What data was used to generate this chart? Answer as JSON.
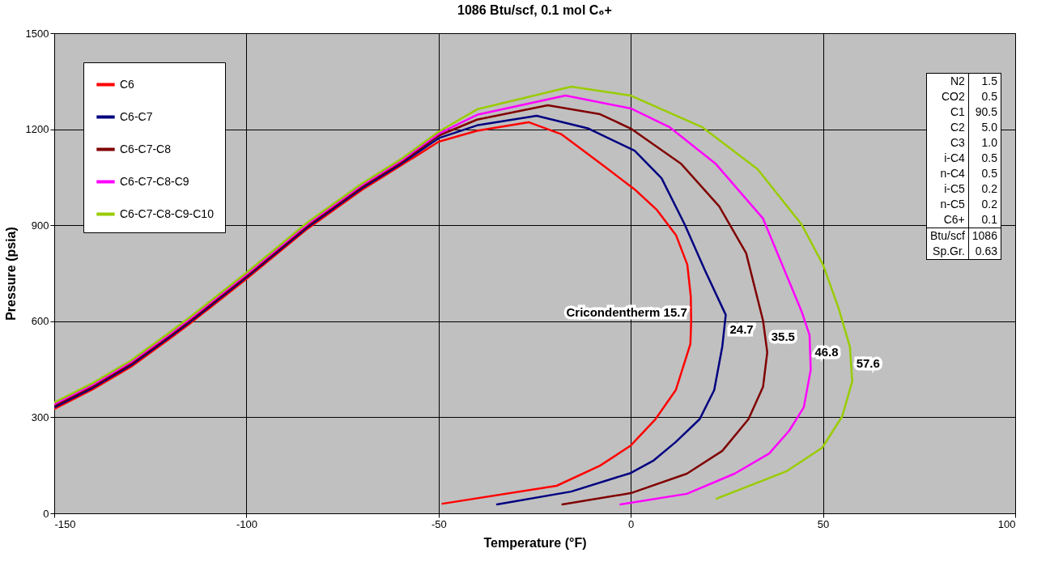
{
  "chart_data": {
    "type": "line",
    "title": "1086 Btu/scf, 0.1  mol C₆+",
    "xlabel": "Temperature (°F)",
    "ylabel": "Pressure (psia)",
    "xlim": [
      -150,
      100
    ],
    "xticks": [
      -150,
      -100,
      -50,
      0,
      50,
      100
    ],
    "ylim": [
      0,
      1500
    ],
    "yticks": [
      0,
      300,
      600,
      900,
      1200,
      1500
    ],
    "grid": true,
    "legend": "top left",
    "marker": "none",
    "line_style": "solid",
    "series": [
      {
        "name": "C6",
        "color": "#ff0000",
        "x": [
          -150,
          -140,
          -130,
          -120,
          -115,
          -100,
          -84,
          -70,
          -60,
          -50,
          -40,
          -26.6,
          -18,
          -7,
          1,
          6.7,
          11.8,
          14.7,
          15.6,
          15.7,
          15.5,
          11.7,
          6.4,
          0,
          -8,
          -19.3,
          -49
        ],
        "values": [
          326,
          387,
          458,
          545,
          590,
          732,
          890,
          1010,
          1085,
          1161,
          1195,
          1222,
          1184,
          1085,
          1012,
          949,
          868,
          777,
          678,
          600,
          529,
          385,
          294,
          212,
          149,
          86,
          30
        ]
      },
      {
        "name": "C6-C7",
        "color": "#000080",
        "x": [
          -150,
          -140,
          -130,
          -120,
          -115,
          -100,
          -84,
          -70,
          -60,
          -50,
          -40,
          -24.5,
          -11,
          1,
          8,
          14,
          19.3,
          24.7,
          23.8,
          21.7,
          17.9,
          11.7,
          5.8,
          0,
          -15.5,
          -34.8
        ],
        "values": [
          331,
          392,
          463,
          550,
          595,
          737,
          895,
          1015,
          1090,
          1172,
          1212,
          1242,
          1202,
          1133,
          1047,
          903,
          759,
          620,
          521,
          385,
          294,
          223,
          164,
          126,
          68,
          28
        ]
      },
      {
        "name": "C6-C7-C8",
        "color": "#800000",
        "x": [
          -150,
          -140,
          -130,
          -120,
          -115,
          -100,
          -84,
          -70,
          -60,
          -50,
          -40,
          -21.6,
          -8,
          0,
          13,
          23,
          30,
          34.4,
          35.5,
          34.4,
          30.6,
          23.8,
          14.6,
          0,
          -17.8
        ],
        "values": [
          336,
          397,
          468,
          555,
          600,
          742,
          900,
          1020,
          1095,
          1180,
          1230,
          1275,
          1247,
          1202,
          1093,
          959,
          813,
          602,
          503,
          395,
          294,
          195,
          124,
          63,
          28
        ]
      },
      {
        "name": "C6-C7-C8-C9",
        "color": "#ff00ff",
        "x": [
          -150,
          -140,
          -130,
          -120,
          -115,
          -100,
          -84,
          -70,
          -60,
          -50,
          -40,
          -17,
          0,
          10,
          22,
          34.4,
          44.4,
          46.5,
          46.8,
          45,
          41.2,
          36,
          27,
          14.6,
          -2.7
        ],
        "values": [
          341,
          402,
          473,
          560,
          605,
          747,
          905,
          1025,
          1100,
          1186,
          1245,
          1305,
          1265,
          1207,
          1093,
          921,
          632,
          557,
          448,
          331,
          258,
          187,
          124,
          61,
          28
        ]
      },
      {
        "name": "C6-C7-C8-C9-C10",
        "color": "#99cc00",
        "x": [
          -150,
          -140,
          -130,
          -120,
          -115,
          -100,
          -84,
          -70,
          -60,
          -50,
          -40,
          -15.5,
          0,
          18.5,
          33,
          44.4,
          50,
          54,
          57,
          57.6,
          55,
          49.8,
          40.6,
          22.3
        ],
        "values": [
          346,
          407,
          478,
          565,
          610,
          752,
          910,
          1030,
          1105,
          1192,
          1262,
          1333,
          1305,
          1207,
          1075,
          903,
          777,
          643,
          521,
          412,
          303,
          205,
          132,
          46
        ]
      }
    ],
    "annotations": [
      {
        "text": "Cricondentherm 15.7",
        "x": 15.7,
        "y": 627
      },
      {
        "text": "24.7",
        "x": 24.7,
        "y": 574
      },
      {
        "text": "35.5",
        "x": 35.5,
        "y": 551
      },
      {
        "text": "46.8",
        "x": 46.8,
        "y": 503
      },
      {
        "text": "57.6",
        "x": 57.6,
        "y": 468
      },
      "N2",
      "1.5",
      "CO2",
      "0.5",
      "C1",
      "90.5",
      "C2",
      "5.0",
      "C3",
      "1.0",
      "i-C4",
      "0.5",
      "n-C4",
      "0.5",
      "i-C5",
      "0.2",
      "n-C5",
      "0.2",
      "C6+",
      "0.1",
      "Btu/scf",
      "1086",
      "Sp.Gr.",
      "0.63"
    ]
  }
}
